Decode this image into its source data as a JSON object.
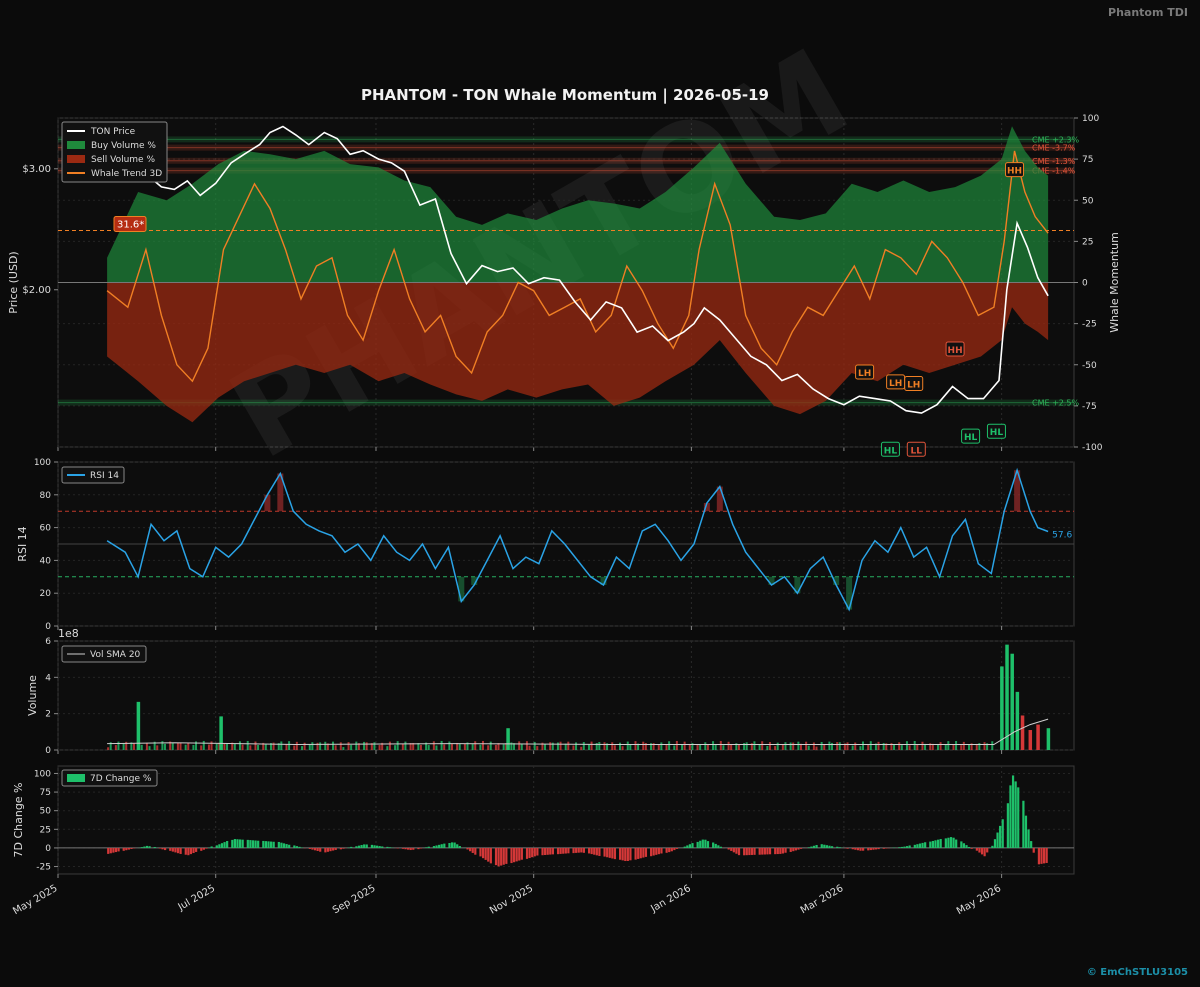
{
  "header": {
    "brand": "Phantom TDI",
    "title": "PHANTOM - TON Whale Momentum | 2026-05-19",
    "watermark": "PHANTOM",
    "credit": "© EmChSTLU3105"
  },
  "colors": {
    "background": "#0b0b0b",
    "price": "#ffffff",
    "buy": "#1f8a3c",
    "sell": "#9b2a12",
    "trend": "#f07f24",
    "rsi": "#2aa3e6",
    "positive": "#1ec06a",
    "negative": "#d43838"
  },
  "chart_data": [
    {
      "type": "line",
      "name": "price-momentum-panel",
      "series": [
        {
          "name": "TON Price",
          "axis": "left"
        },
        {
          "name": "Buy Volume %",
          "axis": "right"
        },
        {
          "name": "Sell Volume %",
          "axis": "right"
        },
        {
          "name": "Whale Trend 3D",
          "axis": "right"
        }
      ],
      "ylabel_left": "Price (USD)",
      "ylabel_right": "Whale Momentum",
      "left_ticks": [
        "$2.00",
        "$3.00"
      ],
      "left_tick_values": [
        2.0,
        3.0
      ],
      "ylim_left": [
        0.7,
        3.42
      ],
      "ylim_right": [
        -100,
        100
      ],
      "right_ticks": [
        -100,
        -75,
        -50,
        -25,
        0,
        25,
        50,
        75,
        100
      ],
      "x_dates": [
        "2025-05-01",
        "2026-05-29"
      ],
      "price": {
        "dates": [
          "2025-05-20",
          "2025-05-26",
          "2025-06-01",
          "2025-06-05",
          "2025-06-10",
          "2025-06-15",
          "2025-06-20",
          "2025-06-25",
          "2025-07-01",
          "2025-07-07",
          "2025-07-12",
          "2025-07-18",
          "2025-07-22",
          "2025-07-27",
          "2025-08-01",
          "2025-08-06",
          "2025-08-12",
          "2025-08-17",
          "2025-08-22",
          "2025-08-27",
          "2025-09-02",
          "2025-09-07",
          "2025-09-12",
          "2025-09-18",
          "2025-09-24",
          "2025-09-30",
          "2025-10-06",
          "2025-10-12",
          "2025-10-18",
          "2025-10-24",
          "2025-10-30",
          "2025-11-05",
          "2025-11-11",
          "2025-11-17",
          "2025-11-23",
          "2025-11-29",
          "2025-12-05",
          "2025-12-11",
          "2025-12-17",
          "2025-12-23",
          "2025-12-29",
          "2026-01-02",
          "2026-01-06",
          "2026-01-12",
          "2026-01-18",
          "2026-01-24",
          "2026-01-30",
          "2026-02-05",
          "2026-02-11",
          "2026-02-17",
          "2026-02-23",
          "2026-03-01",
          "2026-03-07",
          "2026-03-13",
          "2026-03-19",
          "2026-03-25",
          "2026-03-31",
          "2026-04-06",
          "2026-04-12",
          "2026-04-18",
          "2026-04-24",
          "2026-04-30",
          "2026-05-03",
          "2026-05-07",
          "2026-05-11",
          "2026-05-15",
          "2026-05-19"
        ],
        "values": [
          3.02,
          3.12,
          2.98,
          2.94,
          2.85,
          2.83,
          2.9,
          2.78,
          2.88,
          3.05,
          3.12,
          3.2,
          3.3,
          3.35,
          3.28,
          3.2,
          3.3,
          3.25,
          3.12,
          3.15,
          3.08,
          3.05,
          2.98,
          2.7,
          2.75,
          2.3,
          2.05,
          2.2,
          2.15,
          2.18,
          2.05,
          2.1,
          2.08,
          1.9,
          1.75,
          1.9,
          1.85,
          1.65,
          1.7,
          1.58,
          1.65,
          1.72,
          1.85,
          1.75,
          1.6,
          1.45,
          1.38,
          1.25,
          1.3,
          1.18,
          1.1,
          1.05,
          1.12,
          1.1,
          1.08,
          1.0,
          0.98,
          1.05,
          1.2,
          1.1,
          1.1,
          1.25,
          2.0,
          2.55,
          2.35,
          2.1,
          1.95
        ]
      },
      "buy_volume": {
        "dates": [
          "2025-05-20",
          "2025-06-01",
          "2025-06-12",
          "2025-06-22",
          "2025-07-02",
          "2025-07-12",
          "2025-07-22",
          "2025-08-01",
          "2025-08-12",
          "2025-08-22",
          "2025-09-02",
          "2025-09-12",
          "2025-09-22",
          "2025-10-02",
          "2025-10-12",
          "2025-10-22",
          "2025-11-02",
          "2025-11-12",
          "2025-11-22",
          "2025-12-02",
          "2025-12-12",
          "2025-12-22",
          "2026-01-02",
          "2026-01-12",
          "2026-01-22",
          "2026-02-02",
          "2026-02-12",
          "2026-02-22",
          "2026-03-04",
          "2026-03-14",
          "2026-03-24",
          "2026-04-03",
          "2026-04-13",
          "2026-04-23",
          "2026-05-01",
          "2026-05-05",
          "2026-05-10",
          "2026-05-15",
          "2026-05-19"
        ],
        "values": [
          15,
          55,
          50,
          60,
          72,
          80,
          78,
          75,
          80,
          72,
          70,
          62,
          58,
          40,
          35,
          42,
          38,
          45,
          50,
          48,
          45,
          55,
          70,
          85,
          60,
          40,
          38,
          42,
          60,
          55,
          62,
          55,
          58,
          65,
          75,
          95,
          80,
          70,
          65
        ]
      },
      "sell_volume": {
        "dates": [
          "2025-05-20",
          "2025-06-01",
          "2025-06-12",
          "2025-06-22",
          "2025-07-02",
          "2025-07-12",
          "2025-07-22",
          "2025-08-01",
          "2025-08-12",
          "2025-08-22",
          "2025-09-02",
          "2025-09-12",
          "2025-09-22",
          "2025-10-02",
          "2025-10-12",
          "2025-10-22",
          "2025-11-02",
          "2025-11-12",
          "2025-11-22",
          "2025-12-02",
          "2025-12-12",
          "2025-12-22",
          "2026-01-02",
          "2026-01-12",
          "2026-01-22",
          "2026-02-02",
          "2026-02-12",
          "2026-02-22",
          "2026-03-04",
          "2026-03-14",
          "2026-03-24",
          "2026-04-03",
          "2026-04-13",
          "2026-04-23",
          "2026-05-01",
          "2026-05-05",
          "2026-05-10",
          "2026-05-15",
          "2026-05-19"
        ],
        "values": [
          -45,
          -60,
          -75,
          -85,
          -70,
          -60,
          -55,
          -50,
          -55,
          -50,
          -60,
          -55,
          -62,
          -68,
          -72,
          -65,
          -70,
          -65,
          -62,
          -75,
          -70,
          -60,
          -50,
          -35,
          -55,
          -75,
          -80,
          -72,
          -55,
          -60,
          -50,
          -55,
          -50,
          -45,
          -35,
          -15,
          -25,
          -30,
          -35
        ]
      },
      "whale_trend": {
        "dates": [
          "2025-05-20",
          "2025-05-28",
          "2025-06-04",
          "2025-06-10",
          "2025-06-16",
          "2025-06-22",
          "2025-06-28",
          "2025-07-04",
          "2025-07-10",
          "2025-07-16",
          "2025-07-22",
          "2025-07-28",
          "2025-08-03",
          "2025-08-09",
          "2025-08-15",
          "2025-08-21",
          "2025-08-27",
          "2025-09-02",
          "2025-09-08",
          "2025-09-14",
          "2025-09-20",
          "2025-09-26",
          "2025-10-02",
          "2025-10-08",
          "2025-10-14",
          "2025-10-20",
          "2025-10-26",
          "2025-11-01",
          "2025-11-07",
          "2025-11-13",
          "2025-11-19",
          "2025-11-25",
          "2025-12-01",
          "2025-12-07",
          "2025-12-13",
          "2025-12-19",
          "2025-12-25",
          "2025-12-31",
          "2026-01-04",
          "2026-01-10",
          "2026-01-16",
          "2026-01-22",
          "2026-01-28",
          "2026-02-03",
          "2026-02-09",
          "2026-02-15",
          "2026-02-21",
          "2026-02-27",
          "2026-03-05",
          "2026-03-11",
          "2026-03-17",
          "2026-03-23",
          "2026-03-29",
          "2026-04-04",
          "2026-04-10",
          "2026-04-16",
          "2026-04-22",
          "2026-04-28",
          "2026-05-02",
          "2026-05-06",
          "2026-05-10",
          "2026-05-14",
          "2026-05-19"
        ],
        "values": [
          -5,
          -15,
          20,
          -20,
          -50,
          -60,
          -40,
          20,
          40,
          60,
          45,
          20,
          -10,
          10,
          15,
          -20,
          -35,
          -5,
          20,
          -10,
          -30,
          -20,
          -45,
          -55,
          -30,
          -20,
          0,
          -5,
          -20,
          -15,
          -10,
          -30,
          -20,
          10,
          -5,
          -25,
          -40,
          -20,
          20,
          60,
          35,
          -20,
          -40,
          -50,
          -30,
          -15,
          -20,
          -5,
          10,
          -10,
          20,
          15,
          5,
          25,
          15,
          0,
          -20,
          -15,
          25,
          80,
          55,
          40,
          30
        ]
      },
      "reference_lines": [
        {
          "label": "31.6*",
          "value": 31.6,
          "color": "#f07f24"
        },
        {
          "label": "CME +2.3%",
          "value": 87,
          "color": "#2fb55a"
        },
        {
          "label": "CME -3.7%",
          "value": 82,
          "color": "#e0543a"
        },
        {
          "label": "CME -1.3%",
          "value": 74,
          "color": "#e0543a"
        },
        {
          "label": "CME -1.4%",
          "value": 68,
          "color": "#e0543a"
        },
        {
          "label": "CME +2.5%",
          "value": -73,
          "color": "#2fb55a"
        }
      ],
      "pivots": [
        {
          "label": "HH",
          "date": "2026-05-06",
          "value": 68,
          "color": "#f07f24"
        },
        {
          "label": "HH",
          "date": "2026-04-13",
          "value": -41,
          "color": "#e0543a"
        },
        {
          "label": "LH",
          "date": "2026-03-09",
          "value": -55,
          "color": "#f07f24"
        },
        {
          "label": "LH",
          "date": "2026-03-21",
          "value": -61,
          "color": "#f07f24"
        },
        {
          "label": "LH",
          "date": "2026-03-28",
          "value": -62,
          "color": "#f07f24"
        },
        {
          "label": "HL",
          "date": "2026-03-19",
          "value": -102,
          "color": "#1ec06a"
        },
        {
          "label": "LL",
          "date": "2026-03-29",
          "value": -102,
          "color": "#e0543a"
        },
        {
          "label": "HL",
          "date": "2026-04-19",
          "value": -94,
          "color": "#1ec06a"
        },
        {
          "label": "HL",
          "date": "2026-04-29",
          "value": -91,
          "color": "#1ec06a"
        }
      ]
    },
    {
      "type": "line",
      "name": "rsi-panel",
      "series": [
        {
          "name": "RSI 14"
        }
      ],
      "ylabel": "RSI 14",
      "ylim": [
        0,
        100
      ],
      "yticks": [
        0,
        20,
        40,
        60,
        80,
        100
      ],
      "overbought": 70,
      "oversold": 30,
      "last_value_label": "57.6",
      "dates": [
        "2025-05-20",
        "2025-05-27",
        "2025-06-01",
        "2025-06-06",
        "2025-06-11",
        "2025-06-16",
        "2025-06-21",
        "2025-06-26",
        "2025-07-01",
        "2025-07-06",
        "2025-07-11",
        "2025-07-16",
        "2025-07-21",
        "2025-07-26",
        "2025-07-31",
        "2025-08-05",
        "2025-08-10",
        "2025-08-15",
        "2025-08-20",
        "2025-08-25",
        "2025-08-30",
        "2025-09-04",
        "2025-09-09",
        "2025-09-14",
        "2025-09-19",
        "2025-09-24",
        "2025-09-29",
        "2025-10-04",
        "2025-10-09",
        "2025-10-14",
        "2025-10-19",
        "2025-10-24",
        "2025-10-29",
        "2025-11-03",
        "2025-11-08",
        "2025-11-13",
        "2025-11-18",
        "2025-11-23",
        "2025-11-28",
        "2025-12-03",
        "2025-12-08",
        "2025-12-13",
        "2025-12-18",
        "2025-12-23",
        "2025-12-28",
        "2026-01-02",
        "2026-01-07",
        "2026-01-12",
        "2026-01-17",
        "2026-01-22",
        "2026-01-27",
        "2026-02-01",
        "2026-02-06",
        "2026-02-11",
        "2026-02-16",
        "2026-02-21",
        "2026-02-26",
        "2026-03-03",
        "2026-03-08",
        "2026-03-13",
        "2026-03-18",
        "2026-03-23",
        "2026-03-28",
        "2026-04-02",
        "2026-04-07",
        "2026-04-12",
        "2026-04-17",
        "2026-04-22",
        "2026-04-27",
        "2026-05-02",
        "2026-05-07",
        "2026-05-12",
        "2026-05-15",
        "2026-05-19"
      ],
      "values": [
        52,
        45,
        30,
        62,
        52,
        58,
        35,
        30,
        48,
        42,
        50,
        65,
        80,
        93,
        70,
        62,
        58,
        55,
        45,
        50,
        40,
        55,
        45,
        40,
        50,
        35,
        48,
        15,
        25,
        40,
        55,
        35,
        42,
        38,
        58,
        50,
        40,
        30,
        25,
        42,
        35,
        58,
        62,
        52,
        40,
        50,
        75,
        85,
        62,
        45,
        35,
        25,
        30,
        20,
        35,
        42,
        25,
        10,
        40,
        52,
        45,
        60,
        42,
        48,
        30,
        55,
        65,
        38,
        32,
        70,
        95,
        70,
        60,
        57.6
      ]
    },
    {
      "type": "bar",
      "name": "volume-panel",
      "series": [
        {
          "name": "Volume"
        },
        {
          "name": "Vol SMA 20"
        }
      ],
      "ylabel": "Volume",
      "scale_label": "1e8",
      "ylim": [
        0,
        6
      ],
      "yticks": [
        0,
        2,
        4,
        6
      ],
      "spikes": [
        {
          "date": "2025-06-01",
          "value": 2.65,
          "color": "#1ec06a"
        },
        {
          "date": "2025-07-03",
          "value": 1.85,
          "color": "#1ec06a"
        },
        {
          "date": "2025-10-22",
          "value": 1.2,
          "color": "#1ec06a"
        },
        {
          "date": "2026-05-01",
          "value": 4.6,
          "color": "#1ec06a"
        },
        {
          "date": "2026-05-03",
          "value": 5.8,
          "color": "#1ec06a"
        },
        {
          "date": "2026-05-05",
          "value": 5.3,
          "color": "#1ec06a"
        },
        {
          "date": "2026-05-07",
          "value": 3.2,
          "color": "#1ec06a"
        },
        {
          "date": "2026-05-09",
          "value": 1.9,
          "color": "#d43838"
        },
        {
          "date": "2026-05-12",
          "value": 1.1,
          "color": "#d43838"
        },
        {
          "date": "2026-05-15",
          "value": 1.4,
          "color": "#d43838"
        },
        {
          "date": "2026-05-19",
          "value": 1.2,
          "color": "#1ec06a"
        }
      ],
      "sma_dates": [
        "2025-05-20",
        "2025-06-15",
        "2025-08-01",
        "2025-10-01",
        "2025-12-01",
        "2026-02-01",
        "2026-04-01",
        "2026-04-28",
        "2026-05-06",
        "2026-05-12",
        "2026-05-19"
      ],
      "sma_values": [
        0.35,
        0.4,
        0.3,
        0.35,
        0.3,
        0.3,
        0.3,
        0.3,
        1.0,
        1.4,
        1.7
      ]
    },
    {
      "type": "bar",
      "name": "change-panel",
      "series": [
        {
          "name": "7D Change %"
        }
      ],
      "ylabel": "7D Change %",
      "ylim": [
        -35,
        110
      ],
      "yticks": [
        -25,
        0,
        25,
        50,
        75,
        100
      ],
      "dates": [
        "2025-05-20",
        "2025-06-05",
        "2025-06-20",
        "2025-07-08",
        "2025-07-25",
        "2025-08-12",
        "2025-08-28",
        "2025-09-15",
        "2025-10-01",
        "2025-10-18",
        "2025-11-03",
        "2025-11-20",
        "2025-12-07",
        "2025-12-24",
        "2026-01-06",
        "2026-01-20",
        "2026-02-05",
        "2026-02-20",
        "2026-03-08",
        "2026-03-25",
        "2026-04-12",
        "2026-04-25",
        "2026-05-02",
        "2026-05-05",
        "2026-05-08",
        "2026-05-11",
        "2026-05-15",
        "2026-05-19"
      ],
      "values": [
        -8,
        3,
        -10,
        12,
        8,
        -6,
        5,
        -3,
        8,
        -25,
        -10,
        -6,
        -18,
        -5,
        12,
        -10,
        -8,
        5,
        -4,
        2,
        15,
        -12,
        40,
        100,
        80,
        30,
        -22,
        -20
      ]
    }
  ],
  "x_axis": {
    "ticks": [
      {
        "label": "May 2025",
        "date": "2025-05-01"
      },
      {
        "label": "Jul 2025",
        "date": "2025-07-01"
      },
      {
        "label": "Sep 2025",
        "date": "2025-09-01"
      },
      {
        "label": "Nov 2025",
        "date": "2025-11-01"
      },
      {
        "label": "Jan 2026",
        "date": "2026-01-01"
      },
      {
        "label": "Mar 2026",
        "date": "2026-03-01"
      },
      {
        "label": "May 2026",
        "date": "2026-05-01"
      }
    ]
  }
}
